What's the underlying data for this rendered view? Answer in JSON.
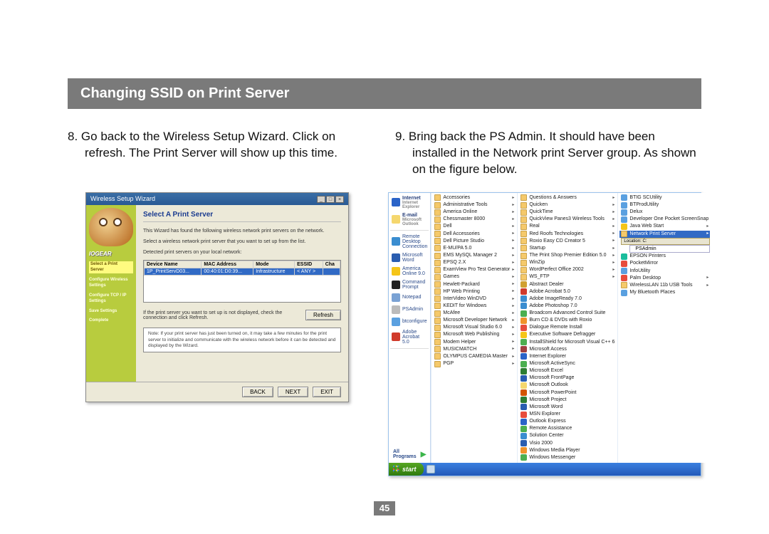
{
  "title": "Changing SSID on Print Server",
  "page_number": "45",
  "step8": {
    "num": "8.",
    "text": "Go back to the Wireless Setup Wizard. Click on refresh. The Print Server will show up this time."
  },
  "step9": {
    "num": "9.",
    "text": "Bring back the PS Admin. It should have been installed in the Network print Server group. As shown on the figure below."
  },
  "wizard": {
    "window_title": "Wireless Setup Wizard",
    "heading": "Select A Print Server",
    "para1": "This Wizard has found the following wireless network print servers on the network.",
    "para2": "Select a wireless network print server that you want to set up from the list.",
    "para3": "Detected print servers on your local network:",
    "headers": [
      "Device Name",
      "MAC Address",
      "Mode",
      "ESSID",
      "Cha"
    ],
    "row": [
      "1P_PrintServD03...",
      "00:40:01:D0:39...",
      "Infrastructure",
      "< ANY >",
      ""
    ],
    "refresh_text": "If the print server you want to set up is not displayed, check the connection and click Refresh.",
    "refresh_btn": "Refresh",
    "note": "Note: If your print server has just been turned on, it may take a few minutes for the print server to initialize and communicate with the wireless network before it can be detected and displayed by the Wizard.",
    "brand": "IOGEAR",
    "side_steps": [
      "Select a Print Server",
      "Configure Wireless Settings",
      "Configure TCP / IP Settings",
      "Save Settings",
      "Complete"
    ],
    "btn_back": "BACK",
    "btn_next": "NEXT",
    "btn_exit": "EXIT"
  },
  "startmenu": {
    "pinned": [
      {
        "label": "Internet",
        "sub": "Internet Explorer",
        "bold": true,
        "color": "#2a63c8"
      },
      {
        "label": "E-mail",
        "sub": "Microsoft Outlook",
        "bold": true,
        "color": "#f5d76e"
      },
      {
        "label": "Remote Desktop Connection",
        "color": "#3a8dd0"
      },
      {
        "label": "Microsoft Word",
        "color": "#2a5db0"
      },
      {
        "label": "America Online 9.0",
        "color": "#f5c518"
      },
      {
        "label": "Command Prompt",
        "color": "#222"
      },
      {
        "label": "Notepad",
        "color": "#7aa2d4"
      },
      {
        "label": "PSAdmin",
        "color": "#bbb"
      },
      {
        "label": "btconfigure",
        "color": "#5aa0e0"
      },
      {
        "label": "Adobe Acrobat 5.0",
        "color": "#d03a2b"
      }
    ],
    "all_programs": "All Programs",
    "col1": [
      {
        "label": "Accessories",
        "folder": true,
        "exp": true
      },
      {
        "label": "Administrative Tools",
        "folder": true,
        "exp": true
      },
      {
        "label": "America Online",
        "folder": true,
        "exp": true
      },
      {
        "label": "Chessmaster 8000",
        "folder": true,
        "exp": true
      },
      {
        "label": "Dell",
        "folder": true,
        "exp": true
      },
      {
        "label": "Dell Accessories",
        "folder": true,
        "exp": true
      },
      {
        "label": "Dell Picture Studio",
        "folder": true,
        "exp": true
      },
      {
        "label": "E-MU/PA 5.0",
        "folder": true,
        "exp": true
      },
      {
        "label": "EMS MySQL Manager 2",
        "folder": true,
        "exp": true
      },
      {
        "label": "EPSQ 2.X",
        "folder": true,
        "exp": true
      },
      {
        "label": "ExamView Pro Test Generator",
        "folder": true,
        "exp": true
      },
      {
        "label": "Games",
        "folder": true,
        "exp": true
      },
      {
        "label": "Hewlett-Packard",
        "folder": true,
        "exp": true
      },
      {
        "label": "HP Web Printing",
        "folder": true,
        "exp": true
      },
      {
        "label": "InterVideo WinDVD",
        "folder": true,
        "exp": true
      },
      {
        "label": "KEDIT for Windows",
        "folder": true,
        "exp": true
      },
      {
        "label": "McAfee",
        "folder": true,
        "exp": true
      },
      {
        "label": "Microsoft Developer Network",
        "folder": true,
        "exp": true
      },
      {
        "label": "Microsoft Visual Studio 6.0",
        "folder": true,
        "exp": true
      },
      {
        "label": "Microsoft Web Publishing",
        "folder": true,
        "exp": true
      },
      {
        "label": "Modem Helper",
        "folder": true,
        "exp": true
      },
      {
        "label": "MUSICMATCH",
        "folder": true,
        "exp": true
      },
      {
        "label": "OLYMPUS CAMEDIA Master",
        "folder": true,
        "exp": true
      },
      {
        "label": "PGP",
        "folder": true,
        "exp": true
      }
    ],
    "col2": [
      {
        "label": "Questions & Answers",
        "folder": true,
        "exp": true
      },
      {
        "label": "Quicken",
        "folder": true,
        "exp": true
      },
      {
        "label": "QuickTime",
        "folder": true,
        "exp": true
      },
      {
        "label": "QuickView Panes3 Wireless Tools",
        "folder": true,
        "exp": true
      },
      {
        "label": "Real",
        "folder": true,
        "exp": true
      },
      {
        "label": "Red Roofs Technologies",
        "folder": true,
        "exp": true
      },
      {
        "label": "Roxio Easy CD Creator 5",
        "folder": true,
        "exp": true
      },
      {
        "label": "Startup",
        "folder": true,
        "exp": true
      },
      {
        "label": "The Print Shop Premier Edition 5.0",
        "folder": true,
        "exp": true
      },
      {
        "label": "WinZip",
        "folder": true,
        "exp": true
      },
      {
        "label": "WordPerfect Office 2002",
        "folder": true,
        "exp": true
      },
      {
        "label": "WS_FTP",
        "folder": true,
        "exp": true
      },
      {
        "label": "Abstract Dealer",
        "color": "#d0a030"
      },
      {
        "label": "Adobe Acrobat 5.0",
        "color": "#d03a2b"
      },
      {
        "label": "Adobe ImageReady 7.0",
        "color": "#3a8dd0"
      },
      {
        "label": "Adobe Photoshop 7.0",
        "color": "#3a8dd0"
      },
      {
        "label": "Broadcom Advanced Control Suite",
        "color": "#4caf50"
      },
      {
        "label": "Burn CD & DVDs with Roxio",
        "color": "#f0932b"
      },
      {
        "label": "Dialogue Remote Install",
        "color": "#e74c3c"
      },
      {
        "label": "Executive Software Defragger",
        "color": "#f5c518"
      },
      {
        "label": "InstallShield for Microsoft Visual C++ 6",
        "color": "#4caf50"
      },
      {
        "label": "Microsoft Access",
        "color": "#a04040"
      },
      {
        "label": "Internet Explorer",
        "color": "#2a63c8"
      },
      {
        "label": "Microsoft ActiveSync",
        "color": "#4caf50"
      },
      {
        "label": "Microsoft Excel",
        "color": "#2e7d32"
      },
      {
        "label": "Microsoft FrontPage",
        "color": "#2a5db0"
      },
      {
        "label": "Microsoft Outlook",
        "color": "#f5d76e"
      },
      {
        "label": "Microsoft PowerPoint",
        "color": "#d35400"
      },
      {
        "label": "Microsoft Project",
        "color": "#2e7d32"
      },
      {
        "label": "Microsoft Word",
        "color": "#2a5db0"
      },
      {
        "label": "MSN Explorer",
        "color": "#e74c3c"
      },
      {
        "label": "Outlook Express",
        "color": "#2a63c8"
      },
      {
        "label": "Remote Assistance",
        "color": "#4caf50"
      },
      {
        "label": "Solution Center",
        "color": "#3a8dd0"
      },
      {
        "label": "Visio 2000",
        "color": "#2a5db0"
      },
      {
        "label": "Windows Media Player",
        "color": "#f0932b"
      },
      {
        "label": "Windows Messenger",
        "color": "#4caf50"
      }
    ],
    "col3": [
      {
        "label": "BTIG SCUtility",
        "color": "#5aa0e0"
      },
      {
        "label": "BTProdUtility",
        "color": "#5aa0e0"
      },
      {
        "label": "Delux",
        "color": "#5aa0e0"
      },
      {
        "label": "Developer One Pocket ScreenSnap",
        "color": "#5aa0e0"
      },
      {
        "label": "Java Web Start",
        "color": "#f5c518",
        "exp": true
      },
      {
        "label": "Network Print Server",
        "folder": true,
        "exp": true,
        "hl": true
      },
      {
        "label": "EPSON Printers",
        "color": "#1abc9c"
      },
      {
        "label": "PocketMirror",
        "color": "#e74c3c"
      },
      {
        "label": "InfoUtility",
        "color": "#5aa0e0"
      },
      {
        "label": "Palm Desktop",
        "color": "#e74c3c",
        "exp": true
      },
      {
        "label": "WirelessLAN 11b USB Tools",
        "folder": true,
        "exp": true
      },
      {
        "label": "My Bluetooth Places",
        "color": "#5aa0e0"
      }
    ],
    "highlight_sub": "PSAdmin",
    "highlight_loc": "Location: C:",
    "start_label": "start"
  }
}
